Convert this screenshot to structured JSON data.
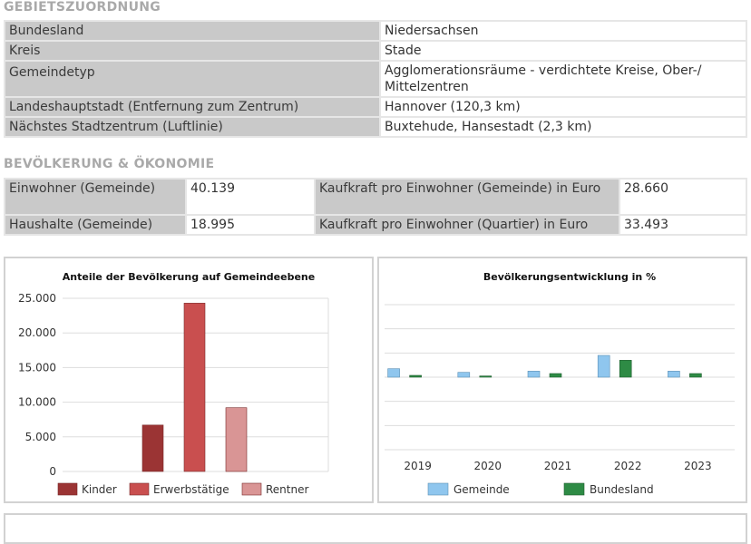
{
  "gebiet": {
    "title": "GEBIETSZUORDNUNG",
    "rows": [
      {
        "label": "Bundesland",
        "value": "Niedersachsen"
      },
      {
        "label": "Kreis",
        "value": "Stade"
      },
      {
        "label": "Gemeindetyp",
        "value": "Agglomerationsräume - verdichtete Kreise, Ober-/ Mittelzentren"
      },
      {
        "label": "Landeshauptstadt (Entfernung zum Zentrum)",
        "value": "Hannover (120,3 km)"
      },
      {
        "label": "Nächstes Stadtzentrum (Luftlinie)",
        "value": "Buxtehude, Hansestadt (2,3 km)"
      }
    ]
  },
  "bevoelkerung": {
    "title": "BEVÖLKERUNG & ÖKONOMIE",
    "rows": [
      {
        "label1": "Einwohner (Gemeinde)",
        "value1": "40.139",
        "label2": "Kaufkraft pro Einwohner (Gemeinde) in Euro",
        "value2": "28.660"
      },
      {
        "label1": "Haushalte (Gemeinde)",
        "value1": "18.995",
        "label2": "Kaufkraft pro Einwohner (Quartier) in Euro",
        "value2": "33.493"
      }
    ]
  },
  "chart_data": [
    {
      "type": "bar",
      "title": "Anteile der Bevölkerung auf Gemeindeebene",
      "ylim": [
        0,
        25000
      ],
      "yticks": [
        "0",
        "5.000",
        "10.000",
        "15.000",
        "20.000",
        "25.000"
      ],
      "grid": true,
      "legend": "bottom",
      "series": [
        {
          "name": "Kinder",
          "value": 6700,
          "color": "#9b3434"
        },
        {
          "name": "Erwerbstätige",
          "value": 24300,
          "color": "#c94f4f"
        },
        {
          "name": "Rentner",
          "value": 9200,
          "color": "#d99595"
        }
      ]
    },
    {
      "type": "bar",
      "title": "Bevölkerungsentwicklung in %",
      "ylim": [
        -6,
        6
      ],
      "yticks": [
        "-6",
        "-4",
        "-2",
        "0",
        "2",
        "4",
        "6"
      ],
      "grid": true,
      "legend": "bottom",
      "categories": [
        "2019",
        "2020",
        "2021",
        "2022",
        "2023"
      ],
      "series": [
        {
          "name": "Gemeinde",
          "values": [
            0.7,
            0.4,
            0.5,
            1.8,
            0.5
          ],
          "color": "#8fc6ee"
        },
        {
          "name": "Bundesland",
          "values": [
            0.15,
            0.1,
            0.3,
            1.4,
            0.3
          ],
          "color": "#2e8b45"
        }
      ]
    }
  ]
}
